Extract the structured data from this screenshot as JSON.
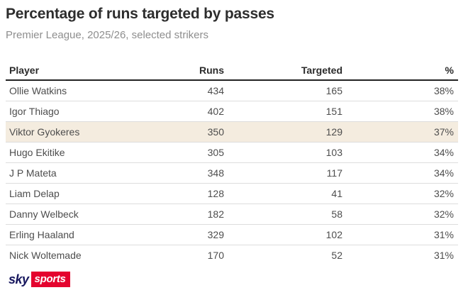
{
  "title": "Percentage of runs targeted by passes",
  "subtitle": "Premier League, 2025/26, selected strikers",
  "chart_data": {
    "type": "table",
    "title": "Percentage of runs targeted by passes",
    "subtitle": "Premier League, 2025/26, selected strikers",
    "columns": [
      "Player",
      "Runs",
      "Targeted",
      "%"
    ],
    "rows": [
      {
        "player": "Ollie Watkins",
        "runs": 434,
        "targeted": 165,
        "pct": "38%",
        "highlight": false
      },
      {
        "player": "Igor Thiago",
        "runs": 402,
        "targeted": 151,
        "pct": "38%",
        "highlight": false
      },
      {
        "player": "Viktor Gyokeres",
        "runs": 350,
        "targeted": 129,
        "pct": "37%",
        "highlight": true
      },
      {
        "player": "Hugo Ekitike",
        "runs": 305,
        "targeted": 103,
        "pct": "34%",
        "highlight": false
      },
      {
        "player": "J P Mateta",
        "runs": 348,
        "targeted": 117,
        "pct": "34%",
        "highlight": false
      },
      {
        "player": "Liam Delap",
        "runs": 128,
        "targeted": 41,
        "pct": "32%",
        "highlight": false
      },
      {
        "player": "Danny Welbeck",
        "runs": 182,
        "targeted": 58,
        "pct": "32%",
        "highlight": false
      },
      {
        "player": "Erling Haaland",
        "runs": 329,
        "targeted": 102,
        "pct": "31%",
        "highlight": false
      },
      {
        "player": "Nick Woltemade",
        "runs": 170,
        "targeted": 52,
        "pct": "31%",
        "highlight": false
      }
    ],
    "highlighted_player": "Viktor Gyokeres",
    "layout": {
      "number_columns_alignment": "right",
      "header_divider": "thick",
      "grid": "row-separators-only"
    }
  },
  "brand": {
    "sky_label": "sky",
    "sports_label": "sports"
  },
  "colors": {
    "highlight_row": "#f4ecdf",
    "brand_navy": "#17175e",
    "brand_red": "#e4032e",
    "header_rule": "#222222",
    "row_separator": "#dddddd",
    "title_text": "#2d2d2d",
    "subtitle_text": "#8e8e8e",
    "cell_text": "#4d4d4d"
  }
}
